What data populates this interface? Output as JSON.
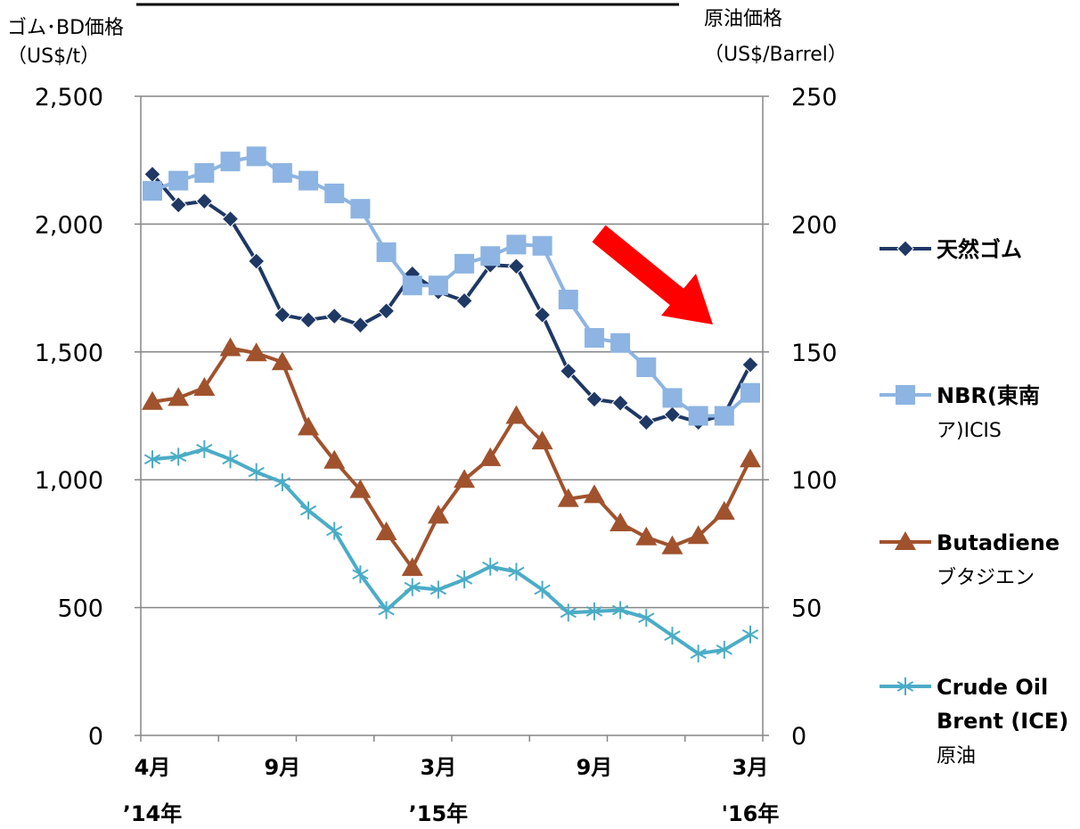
{
  "chart_data": {
    "type": "line",
    "left_axis_title": [
      "ゴム･BD価格",
      "（US$/t）"
    ],
    "right_axis_title": [
      "原油価格",
      "（US$/Barrel）"
    ],
    "left_axis": {
      "min": 0,
      "max": 2500,
      "ticks": [
        "0",
        "500",
        "1,000",
        "1,500",
        "2,000",
        "2,500"
      ]
    },
    "right_axis": {
      "min": 0,
      "max": 250,
      "ticks": [
        "0",
        "50",
        "100",
        "150",
        "200",
        "250"
      ]
    },
    "x_tick_labels": [
      {
        "index": 0,
        "month": "4月",
        "year": "’14年"
      },
      {
        "index": 5,
        "month": "9月",
        "year": ""
      },
      {
        "index": 11,
        "month": "3月",
        "year": "’15年"
      },
      {
        "index": 17,
        "month": "9月",
        "year": ""
      },
      {
        "index": 23,
        "month": "3月",
        "year": "'16年"
      }
    ],
    "grid": "horizontal",
    "legend_position": "right",
    "annotation": "red-downward-arrow",
    "series": [
      {
        "name_lines": [
          "天然ゴム"
        ],
        "color": "#1f3864",
        "marker": "diamond",
        "axis": "left",
        "values": [
          2195,
          2075,
          2090,
          2020,
          1855,
          1645,
          1625,
          1640,
          1605,
          1660,
          1805,
          1735,
          1700,
          1840,
          1835,
          1645,
          1425,
          1315,
          1300,
          1225,
          1255,
          1225,
          1255,
          1450
        ]
      },
      {
        "name_lines": [
          "NBR(東南",
          "ア)ICIS"
        ],
        "color": "#8db4e2",
        "marker": "square",
        "axis": "left",
        "values": [
          2130,
          2170,
          2200,
          2245,
          2265,
          2200,
          2170,
          2120,
          2060,
          1890,
          1760,
          1760,
          1845,
          1875,
          1920,
          1915,
          1705,
          1555,
          1535,
          1440,
          1320,
          1250,
          1250,
          1340
        ]
      },
      {
        "name_lines": [
          "Butadiene",
          "ブタジエン"
        ],
        "color": "#a0522d",
        "marker": "triangle",
        "axis": "left",
        "values": [
          1305,
          1320,
          1360,
          1515,
          1495,
          1460,
          1205,
          1075,
          960,
          795,
          655,
          860,
          1000,
          1085,
          1250,
          1150,
          925,
          940,
          830,
          775,
          740,
          780,
          875,
          1080
        ]
      },
      {
        "name_lines": [
          "Crude Oil",
          "Brent (ICE)",
          "原油"
        ],
        "color": "#4bacc6",
        "marker": "star",
        "axis": "right",
        "values": [
          108,
          109,
          112,
          108,
          103,
          99,
          88,
          80,
          63,
          49,
          58,
          57,
          61,
          66,
          64,
          57,
          48,
          48.5,
          49,
          46,
          39,
          32,
          33.5,
          39.5
        ]
      }
    ]
  }
}
